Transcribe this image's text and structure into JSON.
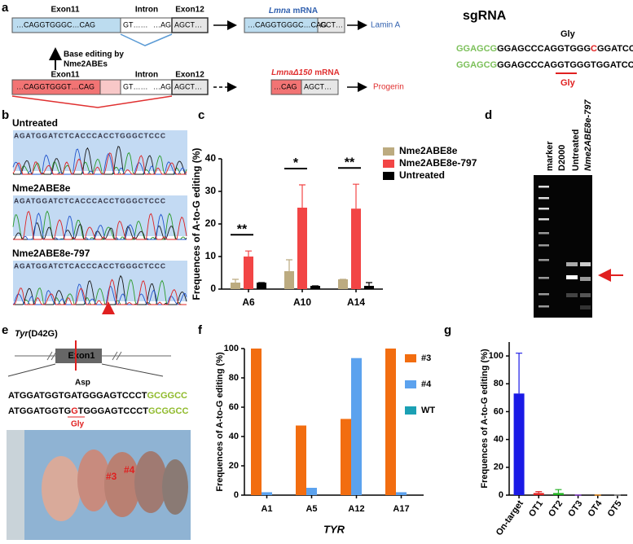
{
  "panel_labels": [
    "a",
    "b",
    "c",
    "d",
    "e",
    "f",
    "g"
  ],
  "panel_a": {
    "row1": {
      "exon11_label": "Exon11",
      "intron_label": "Intron",
      "exon12_label": "Exon12",
      "exon11_seq": "…CAGGTGGGC…CAG",
      "intron_start": "GT……",
      "intron_end": "…AG",
      "exon12_seq": "AGCT…",
      "mrna_gene": "Lmna",
      "mrna_word": "mRNA",
      "mrna_seq": "…CAGGTGGGC…CAG",
      "mrna_tail": "GCT…",
      "product": "Lamin A"
    },
    "editing_note": [
      "Base editing by",
      "Nme2ABEs"
    ],
    "row2": {
      "exon11_label": "Exon11",
      "intron_label": "Intron",
      "exon12_label": "Exon12",
      "exon11_seq": "…CAGGTGGGT…CAG",
      "intron_start": "GT……",
      "intron_end": "…AG",
      "exon12_seq": "AGCT…",
      "mrna_gene": "LmnaΔ150",
      "mrna_word": "mRNA",
      "mrna_seq": "…CAG",
      "mrna_tail": "AGCT…",
      "product": "Progerin"
    },
    "sgrna_title": "sgRNA",
    "gly_top": "Gly",
    "seq1": [
      "GGAGCG",
      "GGAGCCCAGGTGGG",
      "C",
      "GGATCCATC"
    ],
    "seq2": [
      "GGAGCG",
      "GGAGCCCAGGTGGGTGGATCCATC"
    ],
    "gly_bottom": "Gly"
  },
  "panel_b": {
    "tracks": [
      {
        "title": "Untreated",
        "sequence": "AGATGGATCTCACCCACCTGGGCTCCC"
      },
      {
        "title": "Nme2ABE8e",
        "sequence": "AGATGGATCTCACCCACCTGGGCTCCC"
      },
      {
        "title": "Nme2ABE8e-797",
        "sequence": "AGATGGATCTCACCCACCTGGGCTCCC"
      }
    ]
  },
  "panel_d": {
    "lanes": [
      "marker",
      "D2000",
      "Untreated",
      "Nme2ABE8e-797"
    ]
  },
  "panel_e": {
    "gene": "Tyr",
    "mutation": "(D42G)",
    "exon": "Exon1",
    "asp": "Asp",
    "seq1": [
      "ATGGATGGTGATGGGAGTCCCT",
      "GCGGCC"
    ],
    "seq2": [
      "ATGGATGGTG",
      "G",
      "TGGGAGTCCCT",
      "GCGGCC"
    ],
    "gly": "Gly",
    "mice": [
      "#3",
      "#4"
    ]
  },
  "chart_data": [
    {
      "type": "bar",
      "ylabel": "Frequences of A-to-G editing (%)",
      "categories": [
        "A6",
        "A10",
        "A14"
      ],
      "series": [
        {
          "name": "Nme2ABE8e",
          "color": "#bcab80",
          "values": [
            2,
            5.5,
            3
          ],
          "errors": [
            1,
            3.5,
            0
          ]
        },
        {
          "name": "Nme2ABE8e-797",
          "color": "#f24545",
          "values": [
            10,
            25,
            24.7
          ],
          "errors": [
            1.7,
            7,
            7.5
          ]
        },
        {
          "name": "Untreated",
          "color": "#000000",
          "values": [
            2,
            1,
            1
          ],
          "errors": [
            0,
            0,
            1
          ]
        }
      ],
      "annotations": [
        "**",
        "*",
        "**"
      ],
      "ylim": [
        0,
        40
      ],
      "yticks": [
        0,
        10,
        20,
        30,
        40
      ],
      "legend": "upper right"
    },
    {
      "type": "bar",
      "ylabel": "Frequences of A-to-G editing (%)",
      "xlabel": "TYR",
      "categories": [
        "A1",
        "A5",
        "A12",
        "A17"
      ],
      "series": [
        {
          "name": "#3",
          "color": "#f26d10",
          "values": [
            100,
            47.5,
            52,
            100
          ]
        },
        {
          "name": "#4",
          "color": "#5ca2ee",
          "values": [
            2,
            5,
            93.5,
            2
          ]
        },
        {
          "name": "WT",
          "color": "#1ba0b4",
          "values": [
            0,
            0,
            0,
            0
          ]
        }
      ],
      "ylim": [
        0,
        100
      ],
      "yticks": [
        0,
        20,
        40,
        60,
        80,
        100
      ],
      "legend": "upper right"
    },
    {
      "type": "bar",
      "ylabel": "Frequences of A-to-G editing (%)",
      "categories": [
        "On-target",
        "OT1",
        "OT2",
        "OT3",
        "OT4",
        "OT5"
      ],
      "series": [
        {
          "values": [
            73,
            1.5,
            1.5,
            0,
            0,
            0
          ],
          "errors": [
            29,
            1,
            2.5,
            0,
            0,
            0
          ],
          "colors": [
            "#1a1ae6",
            "#e02020",
            "#20b020",
            "#8a2be2",
            "#ff8c00",
            "#888888"
          ]
        }
      ],
      "ylim": [
        0,
        110
      ],
      "yticks": [
        0,
        20,
        40,
        60,
        80,
        100
      ]
    }
  ]
}
